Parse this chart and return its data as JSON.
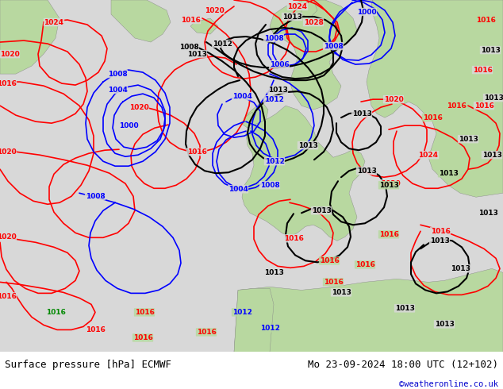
{
  "title_left": "Surface pressure [hPa] ECMWF",
  "title_right": "Mo 23-09-2024 18:00 UTC (12+102)",
  "credit": "©weatheronline.co.uk",
  "bg_ocean": "#d8d8d8",
  "bg_land_green": "#b8d8a0",
  "bg_land_dark": "#a0b888",
  "bottom_bar_color": "#ffffff",
  "bottom_text_color": "#000000",
  "credit_color": "#0000cc",
  "fig_width": 6.34,
  "fig_height": 4.9,
  "dpi": 100
}
